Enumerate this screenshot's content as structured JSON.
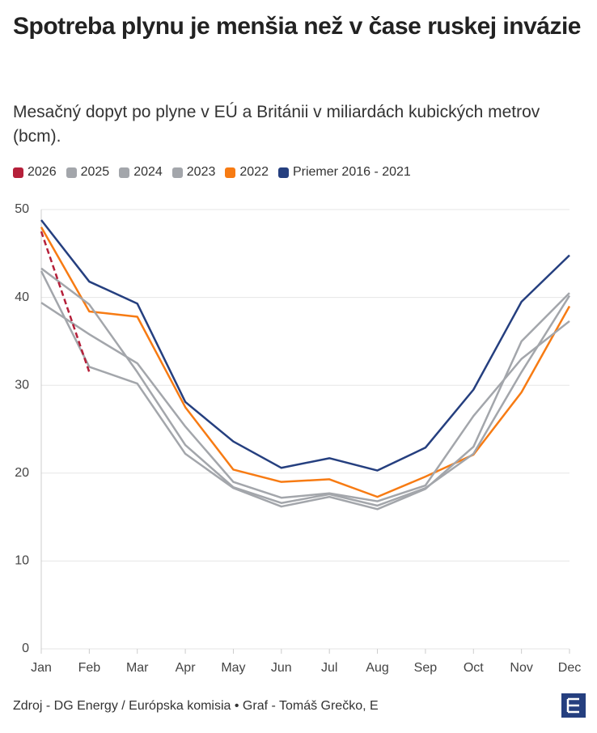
{
  "chart_data": {
    "type": "line",
    "title": "Spotreba plynu je menšia než v čase ruskej invázie",
    "subtitle": "Mesačný dopyt po plyne v EÚ a Británii v miliardách kubických metrov (bcm).",
    "source": "Zdroj - DG Energy / Európska komisia • Graf - Tomáš Grečko, E",
    "categories": [
      "Jan",
      "Feb",
      "Mar",
      "Apr",
      "May",
      "Jun",
      "Jul",
      "Aug",
      "Sep",
      "Oct",
      "Nov",
      "Dec"
    ],
    "ylim": [
      0,
      50
    ],
    "yticks": [
      0,
      10,
      20,
      30,
      40,
      50
    ],
    "grid": true,
    "series": [
      {
        "name": "2026",
        "color": "#b5203a",
        "dashed": true,
        "values": [
          47.5,
          31.5,
          null,
          null,
          null,
          null,
          null,
          null,
          null,
          null,
          null,
          null
        ]
      },
      {
        "name": "2025",
        "color": "#a3a6ab",
        "values": [
          43.0,
          32.1,
          30.2,
          22.2,
          18.3,
          16.2,
          17.3,
          15.9,
          18.2,
          23.0,
          35.0,
          40.5
        ]
      },
      {
        "name": "2024",
        "color": "#a3a6ab",
        "values": [
          39.4,
          35.8,
          32.5,
          25.3,
          19.0,
          17.2,
          17.7,
          16.8,
          18.6,
          26.5,
          33.0,
          37.3
        ]
      },
      {
        "name": "2023",
        "color": "#a3a6ab",
        "values": [
          43.3,
          39.2,
          31.5,
          23.2,
          18.4,
          16.6,
          17.6,
          16.3,
          18.3,
          22.2,
          31.5,
          40.2
        ]
      },
      {
        "name": "2022",
        "color": "#f77b13",
        "values": [
          48.0,
          38.4,
          37.8,
          27.5,
          20.4,
          19.0,
          19.3,
          17.3,
          19.6,
          22.1,
          29.2,
          39.0
        ]
      },
      {
        "name": "Priemer 2016 - 2021",
        "color": "#253f7f",
        "values": [
          48.8,
          41.8,
          39.3,
          28.1,
          23.6,
          20.6,
          21.7,
          20.3,
          22.9,
          29.5,
          39.5,
          44.8
        ]
      }
    ]
  }
}
